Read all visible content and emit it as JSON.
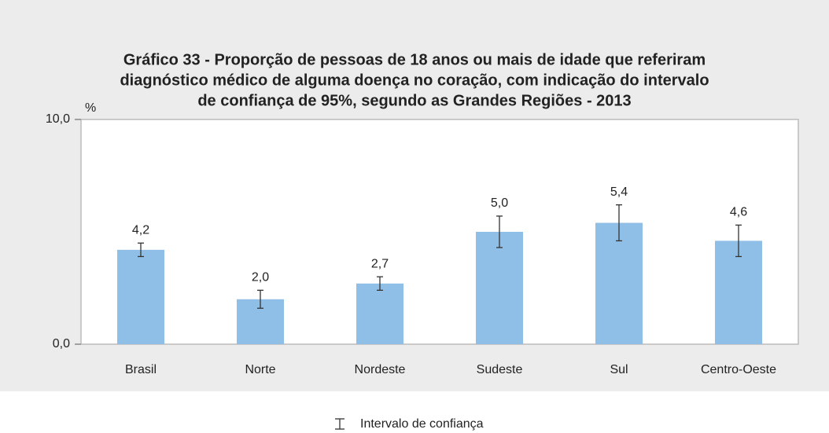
{
  "chart_data": {
    "type": "bar",
    "title": [
      "Gráfico 33 - Proporção de pessoas de 18 anos ou mais de idade que referiram",
      "diagnóstico médico de alguma doença no coração, com indicação do intervalo",
      "de confiança de 95%, segundo as Grandes Regiões - 2013"
    ],
    "y_label": "%",
    "categories": [
      "Brasil",
      "Norte",
      "Nordeste",
      "Sudeste",
      "Sul",
      "Centro-Oeste"
    ],
    "values": [
      4.2,
      2.0,
      2.7,
      5.0,
      5.4,
      4.6
    ],
    "value_labels": [
      "4,2",
      "2,0",
      "2,7",
      "5,0",
      "5,4",
      "4,6"
    ],
    "errors": [
      0.3,
      0.4,
      0.3,
      0.7,
      0.8,
      0.7
    ],
    "color": "#8fbfe6",
    "ylim": [
      0,
      10
    ],
    "yticks": [
      {
        "value": 0,
        "label": "0,0"
      },
      {
        "value": 10,
        "label": "10,0"
      }
    ],
    "legend": "Intervalo de confiança"
  }
}
